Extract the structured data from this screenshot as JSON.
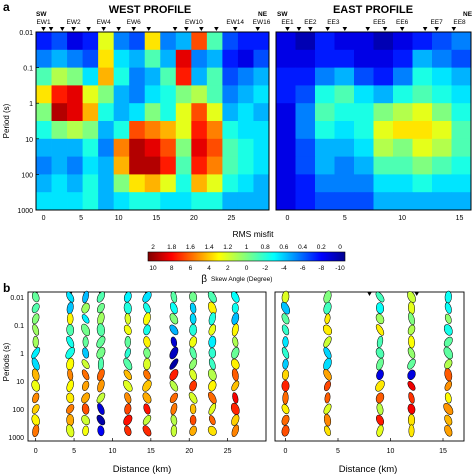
{
  "panel_labels": [
    "a",
    "b"
  ],
  "panel_a": {
    "west_title": "WEST PROFILE",
    "east_title": "EAST PROFILE",
    "west_ends": [
      "SW",
      "NE"
    ],
    "east_ends": [
      "SW",
      "NE"
    ],
    "ylabel": "Period (s)",
    "xlabel": "RMS misfit",
    "y_ticks": [
      "0.01",
      "0.1",
      "1",
      "10",
      "100",
      "1000"
    ],
    "west_x_ticks": [
      "0",
      "5",
      "10",
      "15",
      "20",
      "25"
    ],
    "east_x_ticks": [
      "0",
      "5",
      "10",
      "15"
    ],
    "west_stations": [
      "EW1",
      "EW2",
      "EW4",
      "EW6",
      "EW10",
      "EW14",
      "EW16"
    ],
    "east_stations": [
      "EE1",
      "EE2",
      "EE3",
      "EE5",
      "EE6",
      "EE7",
      "EE8"
    ]
  },
  "colorbar": {
    "beta_ticks": [
      "2",
      "1.8",
      "1.6",
      "1.4",
      "1.2",
      "1",
      "0.8",
      "0.6",
      "0.4",
      "0.2",
      "0"
    ],
    "skew_ticks": [
      "10",
      "8",
      "6",
      "4",
      "2",
      "0",
      "-2",
      "-4",
      "-6",
      "-8",
      "-10"
    ],
    "symbol": "β",
    "label": "Skew Angle (Degree)"
  },
  "panel_b": {
    "ylabel": "Periods (s)",
    "xlabel": "Distance (km)",
    "y_ticks": [
      "0.01",
      "0.1",
      "1",
      "10",
      "100",
      "1000"
    ],
    "west_x_ticks": [
      "0",
      "5",
      "10",
      "15",
      "20",
      "25"
    ],
    "east_x_ticks": [
      "0",
      "5",
      "10",
      "15"
    ]
  },
  "chart_data": [
    {
      "type": "heatmap",
      "title": "WEST PROFILE",
      "xlabel": "RMS misfit",
      "ylabel": "Period (s)",
      "xlim": [
        -1,
        30
      ],
      "ylim": [
        0.01,
        1000
      ],
      "y_scale": "log",
      "stations": [
        "EW1",
        "EW2",
        "EW4",
        "EW6",
        "EW10",
        "EW14",
        "EW16"
      ],
      "color_scale": "beta 0 (blue) to 2 (red)",
      "note": "beta values by station column (left to right) and period row (0.01 to 1000 s, 10 rows)",
      "rows": [
        [
          0.3,
          0.4,
          0.2,
          0.3,
          1.2,
          0.5,
          0.4,
          1.3,
          0.5,
          0.6,
          1.6,
          0.9,
          0.4,
          0.3,
          0.3
        ],
        [
          0.5,
          0.6,
          0.5,
          0.4,
          1.3,
          0.7,
          0.6,
          0.9,
          0.6,
          1.8,
          0.5,
          0.6,
          0.3,
          0.2,
          0.4
        ],
        [
          0.9,
          1.1,
          1.0,
          0.7,
          1.4,
          0.8,
          0.5,
          0.6,
          0.9,
          1.7,
          0.6,
          0.9,
          0.4,
          0.5,
          0.6
        ],
        [
          1.3,
          1.7,
          1.8,
          1.2,
          1.0,
          0.6,
          0.5,
          0.7,
          0.8,
          1.0,
          1.1,
          0.9,
          0.5,
          0.6,
          0.7
        ],
        [
          1.0,
          1.9,
          1.8,
          1.4,
          0.8,
          0.6,
          0.7,
          1.0,
          0.8,
          1.2,
          1.6,
          1.2,
          0.6,
          0.7,
          0.6
        ],
        [
          0.8,
          1.0,
          1.1,
          1.0,
          0.6,
          0.8,
          1.6,
          1.5,
          1.4,
          1.2,
          1.7,
          1.5,
          0.8,
          0.7,
          0.7
        ],
        [
          0.6,
          0.6,
          0.6,
          0.8,
          0.5,
          1.5,
          1.9,
          1.8,
          1.6,
          1.0,
          1.8,
          1.6,
          0.9,
          0.8,
          0.7
        ],
        [
          0.5,
          0.6,
          0.5,
          0.7,
          0.6,
          1.4,
          1.9,
          1.9,
          1.7,
          0.9,
          1.7,
          1.5,
          0.9,
          0.8,
          0.7
        ],
        [
          0.6,
          0.7,
          0.6,
          0.8,
          0.6,
          1.0,
          1.3,
          1.4,
          1.2,
          0.8,
          1.4,
          1.2,
          0.8,
          0.7,
          0.6
        ],
        [
          0.7,
          0.7,
          0.7,
          0.8,
          0.6,
          0.7,
          0.8,
          0.8,
          0.7,
          0.7,
          0.8,
          0.8,
          0.6,
          0.6,
          0.6
        ]
      ]
    },
    {
      "type": "heatmap",
      "title": "EAST PROFILE",
      "xlabel": "RMS misfit",
      "ylabel": "Period (s)",
      "xlim": [
        -1,
        16
      ],
      "ylim": [
        0.01,
        1000
      ],
      "y_scale": "log",
      "stations": [
        "EE1",
        "EE2",
        "EE3",
        "EE5",
        "EE6",
        "EE7",
        "EE8"
      ],
      "color_scale": "beta 0 (blue) to 2 (red)",
      "rows": [
        [
          0.2,
          0.1,
          0.3,
          0.2,
          0.2,
          0.1,
          0.2,
          0.3,
          0.4,
          0.5
        ],
        [
          0.2,
          0.2,
          0.3,
          0.3,
          0.2,
          0.2,
          0.3,
          0.6,
          0.5,
          0.4
        ],
        [
          0.3,
          0.3,
          0.5,
          0.6,
          0.4,
          0.3,
          0.5,
          0.8,
          0.7,
          0.6
        ],
        [
          0.3,
          0.4,
          0.8,
          0.9,
          0.7,
          0.6,
          0.8,
          0.9,
          0.8,
          0.7
        ],
        [
          0.2,
          0.5,
          0.9,
          0.8,
          0.8,
          1.0,
          1.1,
          1.2,
          1.0,
          0.8
        ],
        [
          0.2,
          0.5,
          0.8,
          0.7,
          0.8,
          1.2,
          1.3,
          1.3,
          1.2,
          0.9
        ],
        [
          0.2,
          0.4,
          0.6,
          0.6,
          0.7,
          1.1,
          1.0,
          1.2,
          1.1,
          0.9
        ],
        [
          0.2,
          0.4,
          0.6,
          0.5,
          0.6,
          0.9,
          0.9,
          1.0,
          0.9,
          0.8
        ],
        [
          0.2,
          0.3,
          0.5,
          0.5,
          0.5,
          0.7,
          0.7,
          0.8,
          0.7,
          0.7
        ],
        [
          0.2,
          0.3,
          0.4,
          0.4,
          0.4,
          0.6,
          0.6,
          0.6,
          0.6,
          0.6
        ]
      ]
    },
    {
      "type": "scatter",
      "title": "",
      "xlabel": "Distance (km)",
      "ylabel": "Periods (s)",
      "xlim": [
        -1,
        30
      ],
      "ylim": [
        0.01,
        1000
      ],
      "y_scale": "log",
      "x_stations": [
        0,
        4.5,
        6.5,
        8.5,
        12,
        14.5,
        18,
        20.5,
        23,
        26
      ],
      "periods": [
        0.01,
        0.025,
        0.06,
        0.15,
        0.4,
        1,
        2.5,
        6,
        15,
        40,
        100,
        250,
        600
      ],
      "symbol": "phase tensor ellipses colored by skew angle"
    },
    {
      "type": "scatter",
      "title": "",
      "xlabel": "Distance (km)",
      "ylabel": "",
      "xlim": [
        -1,
        16
      ],
      "ylim": [
        0.01,
        1000
      ],
      "y_scale": "log",
      "x_stations": [
        0,
        4,
        9,
        12,
        15.5
      ],
      "periods": [
        0.01,
        0.025,
        0.06,
        0.15,
        0.4,
        1,
        2.5,
        6,
        15,
        40,
        100,
        250,
        600
      ],
      "symbol": "phase tensor ellipses colored by skew angle"
    }
  ]
}
